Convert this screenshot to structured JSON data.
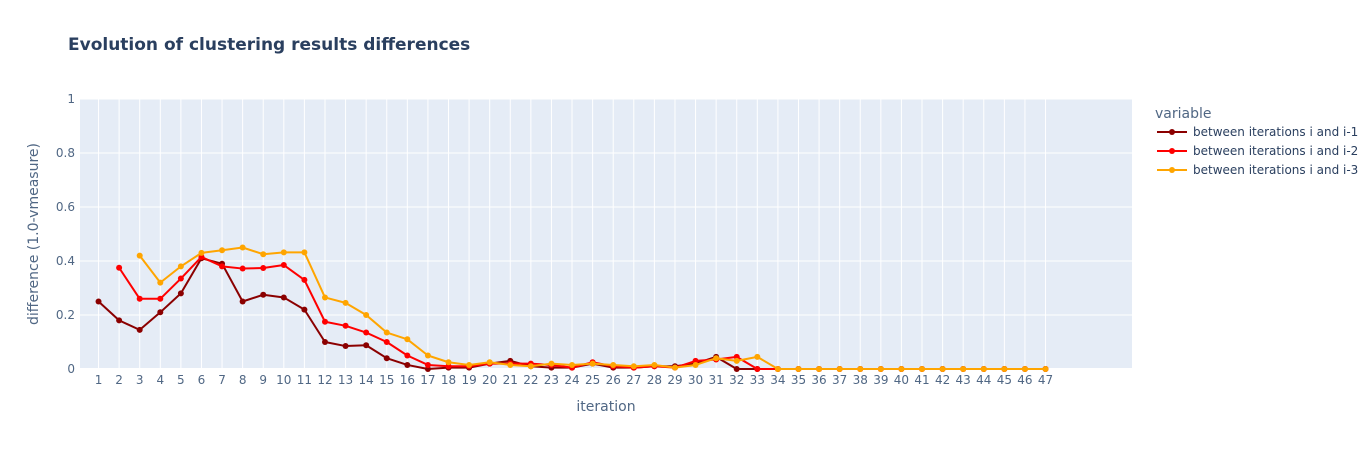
{
  "chart_data": {
    "type": "line",
    "title": "Evolution of clustering results differences",
    "xlabel": "iteration",
    "ylabel": "difference (1.0-vmeasure)",
    "ylim": [
      0,
      1
    ],
    "yticks": [
      "0",
      "0.2",
      "0.4",
      "0.6",
      "0.8",
      "1"
    ],
    "grid": true,
    "legend": {
      "title": "variable",
      "placement": "right"
    },
    "x": [
      1,
      2,
      3,
      4,
      5,
      6,
      7,
      8,
      9,
      10,
      11,
      12,
      13,
      14,
      15,
      16,
      17,
      18,
      19,
      20,
      21,
      22,
      23,
      24,
      25,
      26,
      27,
      28,
      29,
      30,
      31,
      32,
      33,
      34,
      35,
      36,
      37,
      38,
      39,
      40,
      41,
      42,
      43,
      44,
      45,
      46,
      47
    ],
    "series": [
      {
        "name": "between iterations i and i-1",
        "color": "#8b0000",
        "values": [
          0.25,
          0.18,
          0.145,
          0.21,
          0.28,
          0.41,
          0.39,
          0.25,
          0.275,
          0.265,
          0.22,
          0.1,
          0.085,
          0.088,
          0.04,
          0.015,
          0.0,
          0.005,
          0.005,
          0.02,
          0.03,
          0.01,
          0.005,
          0.005,
          0.02,
          0.005,
          0.005,
          0.01,
          0.01,
          0.02,
          0.045,
          0.0,
          0.0,
          0.0,
          0.0,
          0.0,
          0.0,
          0.0,
          0.0,
          0.0,
          0.0,
          0.0,
          0.0,
          0.0,
          0.0,
          0.0,
          0.0
        ]
      },
      {
        "name": "between iterations i and i-2",
        "color": "#ff0000",
        "values": [
          null,
          0.375,
          0.26,
          0.26,
          0.335,
          0.415,
          0.38,
          0.372,
          0.374,
          0.385,
          0.33,
          0.175,
          0.16,
          0.135,
          0.1,
          0.05,
          0.015,
          0.01,
          0.01,
          0.02,
          0.02,
          0.02,
          0.015,
          0.005,
          0.025,
          0.01,
          0.005,
          0.01,
          0.005,
          0.03,
          0.035,
          0.045,
          0.0,
          0.0,
          0.0,
          0.0,
          0.0,
          0.0,
          0.0,
          0.0,
          0.0,
          0.0,
          0.0,
          0.0,
          0.0,
          0.0,
          0.0
        ]
      },
      {
        "name": "between iterations i and i-3",
        "color": "#ffa500",
        "values": [
          null,
          null,
          0.42,
          0.32,
          0.38,
          0.43,
          0.44,
          0.45,
          0.425,
          0.432,
          0.432,
          0.265,
          0.245,
          0.2,
          0.135,
          0.11,
          0.05,
          0.025,
          0.015,
          0.025,
          0.015,
          0.01,
          0.02,
          0.015,
          0.02,
          0.015,
          0.01,
          0.015,
          0.005,
          0.015,
          0.04,
          0.03,
          0.045,
          0.0,
          0.0,
          0.0,
          0.0,
          0.0,
          0.0,
          0.0,
          0.0,
          0.0,
          0.0,
          0.0,
          0.0,
          0.0,
          0.0
        ]
      }
    ]
  }
}
